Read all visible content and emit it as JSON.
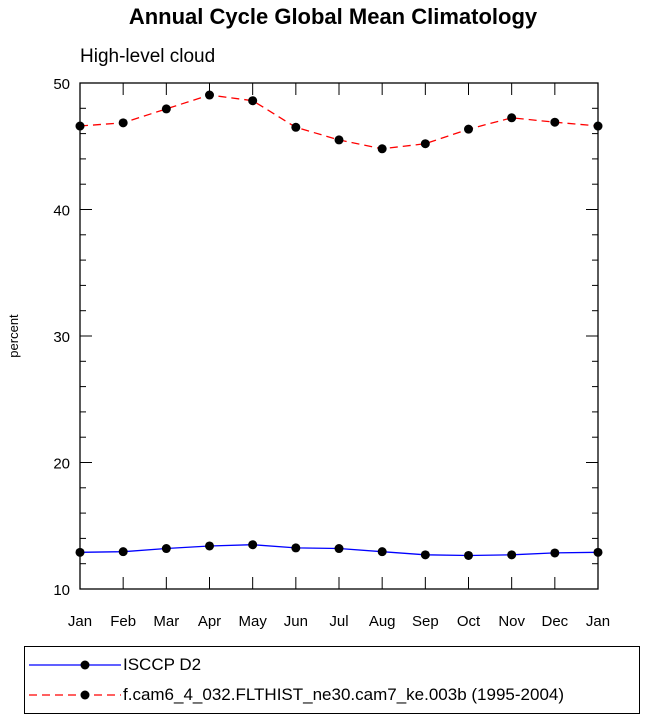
{
  "chart_data": {
    "type": "line",
    "title": "Annual Cycle Global Mean Climatology",
    "subtitle": "High-level cloud",
    "ylabel": "percent",
    "ylim": [
      10,
      50
    ],
    "yticks": [
      10,
      20,
      30,
      40,
      50
    ],
    "categories": [
      "Jan",
      "Feb",
      "Mar",
      "Apr",
      "May",
      "Jun",
      "Jul",
      "Aug",
      "Sep",
      "Oct",
      "Nov",
      "Dec",
      "Jan"
    ],
    "series": [
      {
        "name": "ISCCP D2",
        "color": "#0000ff",
        "dash": "solid",
        "values": [
          12.9,
          12.95,
          13.2,
          13.4,
          13.5,
          13.25,
          13.2,
          12.95,
          12.7,
          12.65,
          12.7,
          12.85,
          12.9
        ]
      },
      {
        "name": "f.cam6_4_032.FLTHIST_ne30.cam7_ke.003b (1995-2004)",
        "color": "#ff0000",
        "dash": "dashed",
        "values": [
          46.6,
          46.85,
          47.95,
          49.05,
          48.6,
          46.5,
          45.5,
          44.8,
          45.2,
          46.35,
          47.25,
          46.9,
          46.6
        ]
      }
    ],
    "legend": "bottom"
  }
}
